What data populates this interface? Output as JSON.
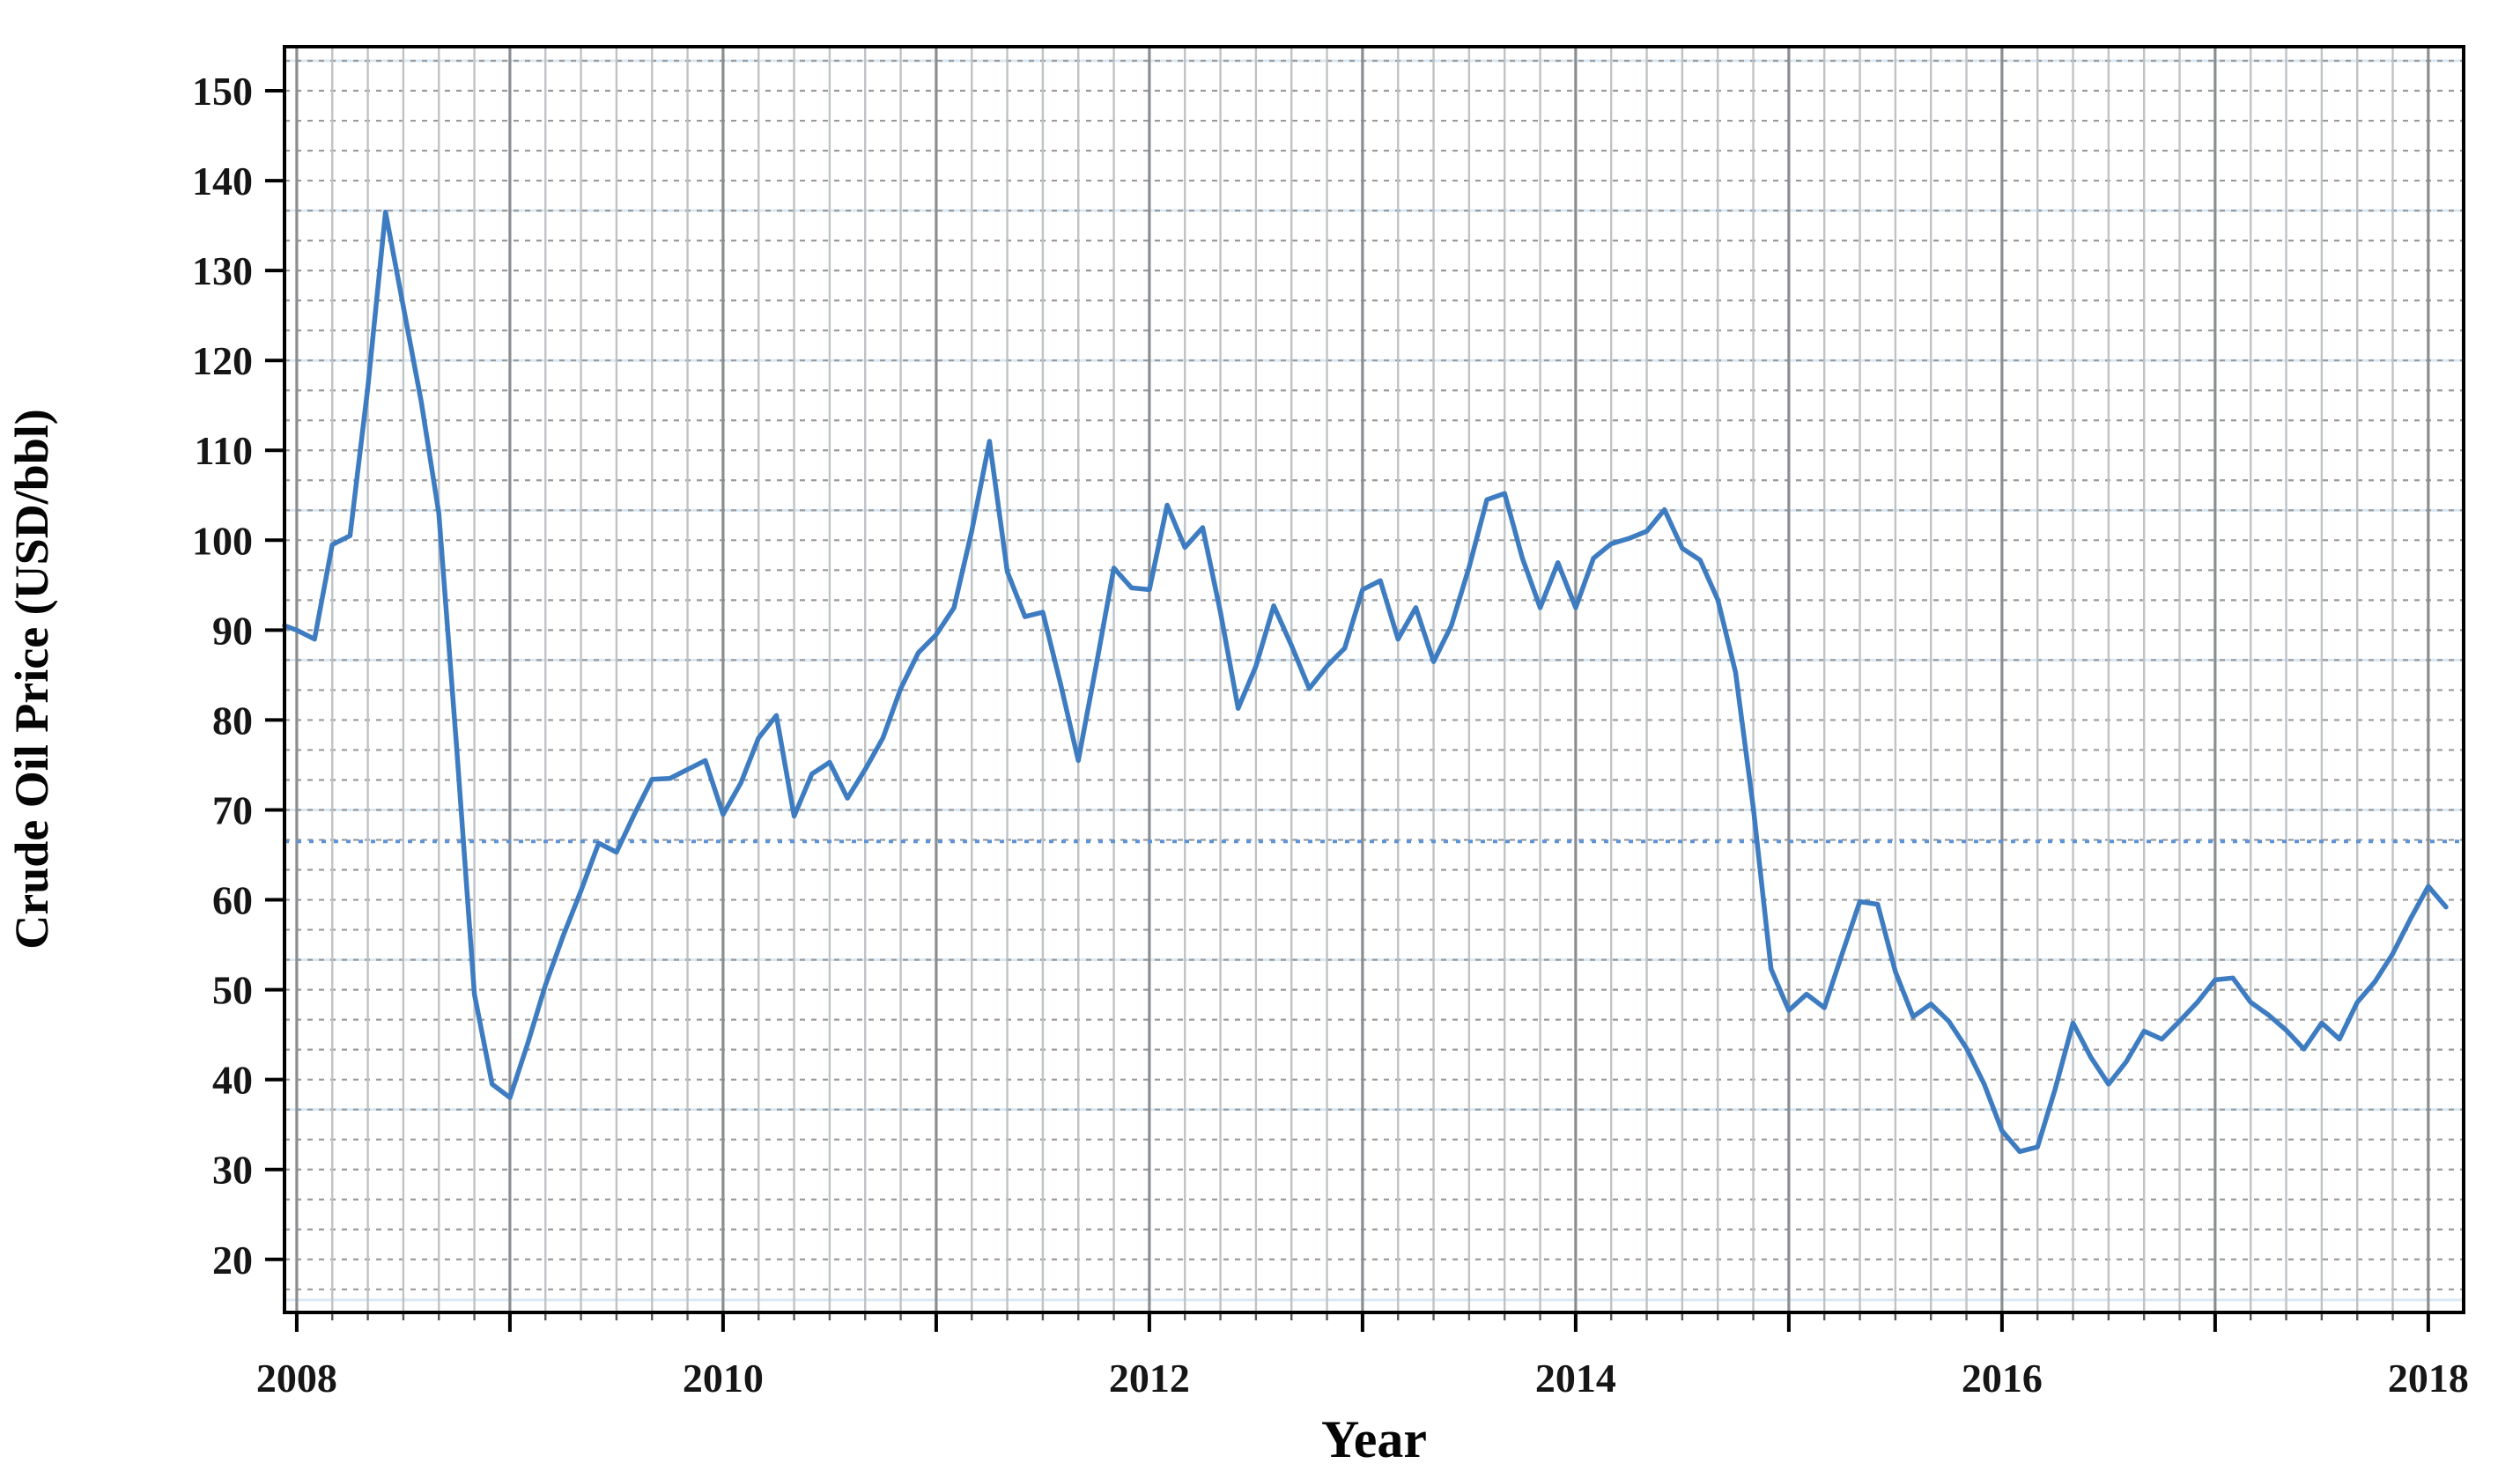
{
  "page": {
    "background_color": "#ffffff",
    "description": "Line chart of monthly crude oil price from 2008 to early 2018"
  },
  "chart_data": {
    "type": "line",
    "title": "",
    "xlabel": "Year",
    "ylabel": "Crude Oil Price (USD/bbl)",
    "unit": "USD per barrel",
    "frequency": "monthly",
    "x_start": "2008-01",
    "x_end": "2018-02",
    "legend": false,
    "grid_on": true,
    "ylim": [
      14.1,
      154.9
    ],
    "x_months_range": [
      -0.69,
      121.99
    ],
    "yticks": [
      150,
      140,
      130,
      120,
      110,
      100,
      90,
      80,
      70,
      60,
      50,
      40,
      30,
      20
    ],
    "xticks": [
      {
        "label": "2008",
        "year": 2008
      },
      {
        "label": "2010",
        "year": 2010
      },
      {
        "label": "2012",
        "year": 2012
      },
      {
        "label": "2014",
        "year": 2014
      },
      {
        "label": "2016",
        "year": 2016
      },
      {
        "label": "2018",
        "year": 2018
      }
    ],
    "left_edge_value": 90.5,
    "series": [
      {
        "name": "Crude oil price (USD/bbl)",
        "values": [
          90.0,
          89.0,
          99.5,
          100.5,
          117.0,
          136.5,
          126.0,
          115.5,
          103.0,
          77.0,
          49.5,
          39.5,
          38.0,
          44.0,
          50.5,
          56.0,
          61.0,
          66.3,
          65.3,
          69.5,
          73.4,
          73.5,
          74.5,
          75.5,
          69.5,
          73.0,
          78.0,
          80.5,
          69.3,
          74.0,
          75.3,
          71.3,
          74.5,
          78.0,
          83.5,
          87.5,
          89.5,
          92.5,
          101.0,
          111.0,
          96.5,
          91.5,
          92.0,
          84.0,
          75.5,
          86.0,
          96.9,
          94.7,
          94.5,
          103.9,
          99.2,
          101.4,
          92.0,
          81.3,
          86.0,
          92.7,
          88.3,
          83.5,
          86.0,
          88.0,
          94.5,
          95.5,
          89.0,
          92.5,
          86.5,
          90.5,
          97.0,
          104.5,
          105.2,
          98.0,
          92.5,
          97.5,
          92.5,
          98.0,
          99.6,
          100.2,
          101.0,
          103.4,
          99.1,
          97.8,
          93.4,
          85.3,
          70.2,
          52.3,
          47.7,
          49.5,
          48.0,
          54.0,
          59.8,
          59.5,
          52.0,
          47.0,
          48.4,
          46.5,
          43.5,
          39.5,
          34.3,
          32.0,
          32.5,
          39.0,
          46.3,
          42.5,
          39.5,
          42.0,
          45.4,
          44.5,
          46.5,
          48.6,
          51.1,
          51.3,
          48.6,
          47.2,
          45.5,
          43.4,
          46.3,
          44.5,
          48.6,
          50.9,
          54.0,
          57.9,
          61.5,
          59.2
        ]
      }
    ],
    "reference_line": {
      "value": 66.5,
      "style": "dotted",
      "color": "#5e93d6",
      "meaning": "horizontal dotted level line at about 67 USD/bbl"
    },
    "line_color": "#3e7cc1",
    "line_width": 5.5,
    "frame_color": "#000000",
    "grid": {
      "vertical_interval_months": 2,
      "vertical_color": "#bfc3c6",
      "vertical_year_color": "#8a8e91",
      "horizontal_dotted_interval": 3.3333,
      "horizontal_dotted_color": "#9a9a9a",
      "highlight_color": "#d8e8f5",
      "highlight_values": [
        15.5,
        36.67,
        53.33,
        70.0,
        86.67,
        103.33,
        120.0,
        136.67,
        153.33
      ]
    }
  }
}
